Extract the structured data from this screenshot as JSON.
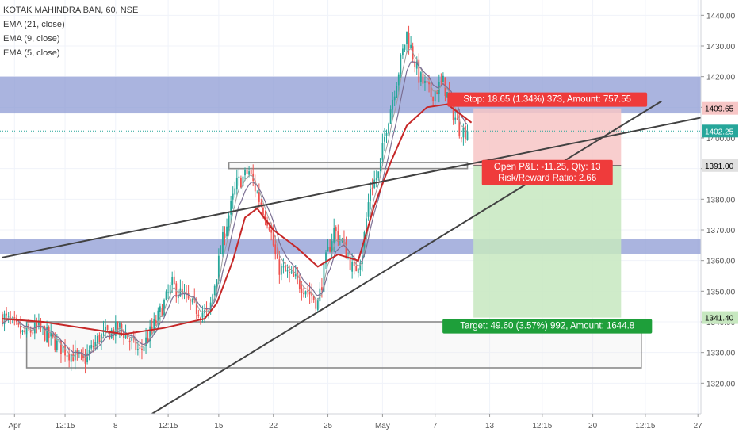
{
  "legend": {
    "symbol": "KOTAK MAHINDRA BAN, 60, NSE",
    "ind1": "EMA (21, close)",
    "ind2": "EMA (9, close)",
    "ind3": "EMA (5, close)"
  },
  "colors": {
    "up": "#26a69a",
    "down": "#ef5350",
    "ema21": "#c62828",
    "ema9": "#7b6f93",
    "ema5": "#9e9e9e",
    "zone": "#8e9bd4",
    "stop_fill": "#f7c6c6",
    "target_fill": "#c7e8c0",
    "stop_label": "#ef3b3b",
    "target_label": "#1e9f3a",
    "trendline": "#424242",
    "current_price": "#26a69a"
  },
  "trade": {
    "stop_text": "Stop: 18.65 (1.34%) 373, Amount: 757.55",
    "pnl_text": "Open P&L: -11.25, Qty: 13",
    "rr_text": "Risk/Reward Ratio: 2.66",
    "target_text": "Target: 49.60 (3.57%) 992, Amount: 1644.8",
    "entry": 1391.0,
    "stop": 1409.65,
    "target": 1341.4
  },
  "price_labels": {
    "stop": "1409.65",
    "current": "1402.25",
    "entry": "1391.00",
    "target": "1341.40"
  },
  "chart_data": {
    "type": "candlestick",
    "title": "KOTAK MAHINDRA BAN, 60, NSE",
    "ylim": [
      1310,
      1445
    ],
    "y_ticks": [
      1320,
      1330,
      1340,
      1350,
      1360,
      1370,
      1380,
      1390,
      1400,
      1410,
      1420,
      1430,
      1440
    ],
    "y_tick_labels": [
      "1320.00",
      "1330.00",
      "1340.00",
      "1350.00",
      "1360.00",
      "1370.00",
      "1380.00",
      "1390.00",
      "1400.00",
      "1410.00",
      "1420.00",
      "1430.00",
      "1440.00"
    ],
    "x_ticks": [
      "Apr",
      "12:15",
      "8",
      "12:15",
      "15",
      "22",
      "25",
      "May",
      "7",
      "13",
      "12:15",
      "20",
      "12:15",
      "27"
    ],
    "x_tick_index": [
      6,
      31,
      56,
      82,
      107,
      134,
      161,
      188,
      214,
      241,
      267,
      292,
      318,
      344
    ],
    "close_anchors": [
      [
        0,
        1342
      ],
      [
        10,
        1336
      ],
      [
        18,
        1338
      ],
      [
        28,
        1332
      ],
      [
        40,
        1327
      ],
      [
        48,
        1335
      ],
      [
        58,
        1338
      ],
      [
        68,
        1330
      ],
      [
        76,
        1340
      ],
      [
        84,
        1352
      ],
      [
        94,
        1345
      ],
      [
        102,
        1342
      ],
      [
        106,
        1356
      ],
      [
        110,
        1370
      ],
      [
        116,
        1385
      ],
      [
        122,
        1389
      ],
      [
        127,
        1380
      ],
      [
        132,
        1372
      ],
      [
        136,
        1358
      ],
      [
        142,
        1355
      ],
      [
        150,
        1351
      ],
      [
        156,
        1346
      ],
      [
        160,
        1360
      ],
      [
        164,
        1370
      ],
      [
        168,
        1366
      ],
      [
        174,
        1356
      ],
      [
        178,
        1363
      ],
      [
        182,
        1384
      ],
      [
        186,
        1388
      ],
      [
        190,
        1404
      ],
      [
        196,
        1422
      ],
      [
        200,
        1434
      ],
      [
        206,
        1420
      ],
      [
        212,
        1414
      ],
      [
        218,
        1418
      ],
      [
        222,
        1410
      ],
      [
        226,
        1403
      ],
      [
        230,
        1402
      ]
    ],
    "ema21_anchors": [
      [
        0,
        1341
      ],
      [
        20,
        1340
      ],
      [
        40,
        1338
      ],
      [
        60,
        1336
      ],
      [
        80,
        1338
      ],
      [
        100,
        1341
      ],
      [
        106,
        1346
      ],
      [
        114,
        1360
      ],
      [
        120,
        1374
      ],
      [
        126,
        1377
      ],
      [
        134,
        1370
      ],
      [
        146,
        1364
      ],
      [
        156,
        1358
      ],
      [
        166,
        1362
      ],
      [
        176,
        1360
      ],
      [
        184,
        1378
      ],
      [
        192,
        1392
      ],
      [
        200,
        1404
      ],
      [
        210,
        1410
      ],
      [
        220,
        1411
      ],
      [
        226,
        1408
      ],
      [
        232,
        1405
      ]
    ],
    "support_resistance_zones": [
      {
        "low": 1408,
        "high": 1420
      },
      {
        "low": 1362,
        "high": 1367
      }
    ],
    "rectangles": [
      {
        "x1": 112,
        "x2": 230,
        "low": 1390,
        "high": 1392
      },
      {
        "x1": 12,
        "x2": 316,
        "low": 1325,
        "high": 1340
      }
    ],
    "trendlines": [
      {
        "x1": 0,
        "y1": 1361,
        "x2": 356,
        "y2": 1408
      },
      {
        "x1": 74,
        "y1": 1310,
        "x2": 326,
        "y2": 1412
      }
    ],
    "trade_box": {
      "x1": 233,
      "x2": 306,
      "entry": 1391.0,
      "stop": 1409.65,
      "target": 1341.4
    },
    "current_price": 1402.25,
    "candle_count": 231
  }
}
